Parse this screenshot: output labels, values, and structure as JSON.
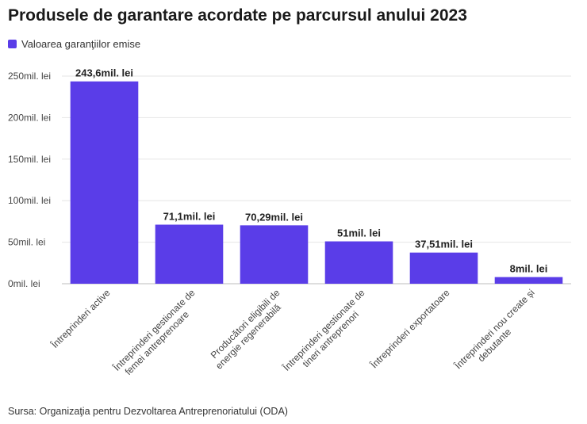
{
  "title": "Produsele de garantare acordate pe parcursul anului 2023",
  "legend": {
    "label": "Valoarea garanţiilor emise",
    "color": "#5a3de8"
  },
  "source": "Sursa: Organizaţia pentru Dezvoltarea Antreprenoriatului (ODA)",
  "chart_data": {
    "type": "bar",
    "title": "Produsele de garantare acordate pe parcursul anului 2023",
    "xlabel": "",
    "ylabel": "",
    "ylim": [
      0,
      250
    ],
    "yticks": [
      0,
      50,
      100,
      150,
      200,
      250
    ],
    "ytick_labels": [
      "0mil. lei",
      "50mil. lei",
      "100mil. lei",
      "150mil. lei",
      "200mil. lei",
      "250mil. lei"
    ],
    "grid": true,
    "legend_position": "top-left",
    "categories": [
      [
        "Întreprinderi active"
      ],
      [
        "Întreprinderi gestionate de",
        "femei antreprenoare"
      ],
      [
        "Producători eligibili de",
        "energie regenerabilă"
      ],
      [
        "Întreprinderi gestionate de",
        "tineri antreprenori"
      ],
      [
        "Întreprinderi exportatoare"
      ],
      [
        "Întreprinderi nou create și",
        "debutante"
      ]
    ],
    "series": [
      {
        "name": "Valoarea garanţiilor emise",
        "color": "#5a3de8",
        "values": [
          243.6,
          71.1,
          70.29,
          51,
          37.51,
          8
        ],
        "data_labels": [
          "243,6mil. lei",
          "71,1mil. lei",
          "70,29mil. lei",
          "51mil. lei",
          "37,51mil. lei",
          "8mil. lei"
        ]
      }
    ]
  }
}
